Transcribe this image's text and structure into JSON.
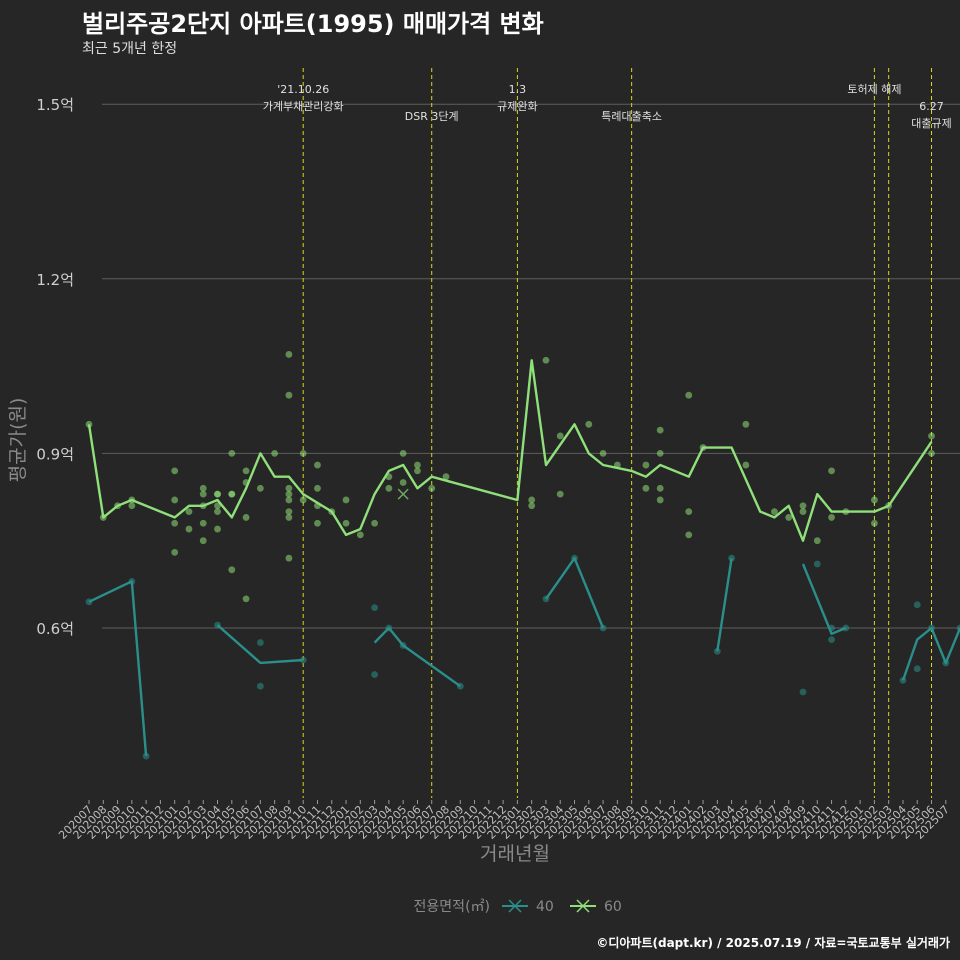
{
  "header": {
    "title": "벌리주공2단지 아파트(1995) 매매가격 변화",
    "subtitle": "최근 5개년 한정"
  },
  "caption": "©디아파트(dapt.kr) / 2025.07.19 / 자료=국토교통부 실거래가",
  "chart_data": {
    "type": "line",
    "xlabel": "거래년월",
    "ylabel": "평균가(원)",
    "yticks": [
      0.6,
      0.9,
      1.2,
      1.5
    ],
    "ytick_labels": [
      "0.6억",
      "0.9억",
      "1.2억",
      "1.5억"
    ],
    "ylim": [
      0.32,
      1.58
    ],
    "grid": true,
    "x_categories": [
      "202007",
      "202008",
      "202009",
      "202010",
      "202011",
      "202012",
      "202101",
      "202102",
      "202103",
      "202104",
      "202105",
      "202106",
      "202107",
      "202108",
      "202109",
      "202110",
      "202111",
      "202112",
      "202201",
      "202202",
      "202203",
      "202204",
      "202205",
      "202206",
      "202207",
      "202208",
      "202209",
      "202210",
      "202211",
      "202212",
      "202301",
      "202302",
      "202303",
      "202304",
      "202305",
      "202306",
      "202307",
      "202308",
      "202309",
      "202310",
      "202311",
      "202312",
      "202401",
      "202402",
      "202403",
      "202404",
      "202405",
      "202406",
      "202407",
      "202408",
      "202409",
      "202410",
      "202411",
      "202412",
      "202501",
      "202502",
      "202503",
      "202504",
      "202505",
      "202506",
      "202507"
    ],
    "legend": {
      "title": "전용면적(㎡)",
      "position": "bottom",
      "entries": [
        {
          "label": "40",
          "color": "#2a8f8a"
        },
        {
          "label": "60",
          "color": "#8fe07a"
        }
      ]
    },
    "events": [
      {
        "x": "202110",
        "label_lines": [
          "'21.10.26",
          "가계부채관리강화"
        ],
        "row": 0
      },
      {
        "x": "202207",
        "label_lines": [
          "DSR 3단계"
        ],
        "row": 1
      },
      {
        "x": "202301",
        "label_lines": [
          "1.3",
          "규제완화"
        ],
        "row": 0
      },
      {
        "x": "202309",
        "label_lines": [
          "특례대출축소"
        ],
        "row": 1
      },
      {
        "x": "202502",
        "label_lines": [
          "토허제 해제"
        ],
        "row": 0
      },
      {
        "x": "202503",
        "label_lines": [],
        "row": 0
      },
      {
        "x": "202506",
        "label_lines": [
          "6.27",
          "대출규제"
        ],
        "row": 2
      }
    ],
    "series": [
      {
        "name": "60",
        "color": "#8fe07a",
        "line": [
          [
            "202007",
            0.95
          ],
          [
            "202008",
            0.79
          ],
          [
            "202009",
            0.81
          ],
          [
            "202010",
            0.82
          ],
          [
            "202012",
            0.8
          ],
          [
            "202101",
            0.79
          ],
          [
            "202102",
            0.81
          ],
          [
            "202103",
            0.81
          ],
          [
            "202104",
            0.82
          ],
          [
            "202105",
            0.79
          ],
          [
            "202106",
            0.84
          ],
          [
            "202107",
            0.9
          ],
          [
            "202108",
            0.86
          ],
          [
            "202109",
            0.86
          ],
          [
            "202110",
            0.83
          ],
          [
            "202112",
            0.8
          ],
          [
            "202201",
            0.76
          ],
          [
            "202202",
            0.77
          ],
          [
            "202203",
            0.83
          ],
          [
            "202204",
            0.87
          ],
          [
            "202205",
            0.88
          ],
          [
            "202206",
            0.84
          ],
          [
            "202207",
            0.86
          ],
          [
            "202301",
            0.82
          ],
          [
            "202302",
            1.06
          ],
          [
            "202303",
            0.88
          ],
          [
            "202305",
            0.95
          ],
          [
            "202306",
            0.9
          ],
          [
            "202307",
            0.88
          ],
          [
            "202309",
            0.87
          ],
          [
            "202310",
            0.86
          ],
          [
            "202311",
            0.88
          ],
          [
            "202401",
            0.86
          ],
          [
            "202402",
            0.91
          ],
          [
            "202404",
            0.91
          ],
          [
            "202406",
            0.8
          ],
          [
            "202407",
            0.79
          ],
          [
            "202408",
            0.81
          ],
          [
            "202409",
            0.75
          ],
          [
            "202410",
            0.83
          ],
          [
            "202411",
            0.8
          ],
          [
            "202501",
            0.8
          ],
          [
            "202502",
            0.8
          ],
          [
            "202503",
            0.81
          ],
          [
            "202506",
            0.92
          ]
        ],
        "points": [
          [
            "202007",
            0.95
          ],
          [
            "202008",
            0.79
          ],
          [
            "202009",
            0.81
          ],
          [
            "202010",
            0.81
          ],
          [
            "202010",
            0.82
          ],
          [
            "202101",
            0.87
          ],
          [
            "202101",
            0.82
          ],
          [
            "202101",
            0.78
          ],
          [
            "202101",
            0.73
          ],
          [
            "202102",
            0.8
          ],
          [
            "202102",
            0.77
          ],
          [
            "202103",
            0.84
          ],
          [
            "202103",
            0.83
          ],
          [
            "202103",
            0.81
          ],
          [
            "202103",
            0.78
          ],
          [
            "202103",
            0.75
          ],
          [
            "202104",
            0.83
          ],
          [
            "202104",
            0.83
          ],
          [
            "202104",
            0.81
          ],
          [
            "202104",
            0.8
          ],
          [
            "202104",
            0.77
          ],
          [
            "202105",
            0.9
          ],
          [
            "202105",
            0.83
          ],
          [
            "202105",
            0.83
          ],
          [
            "202105",
            0.7
          ],
          [
            "202106",
            0.87
          ],
          [
            "202106",
            0.85
          ],
          [
            "202106",
            0.79
          ],
          [
            "202106",
            0.65
          ],
          [
            "202107",
            0.84
          ],
          [
            "202108",
            0.9
          ],
          [
            "202109",
            1.07
          ],
          [
            "202109",
            1.0
          ],
          [
            "202109",
            0.84
          ],
          [
            "202109",
            0.83
          ],
          [
            "202109",
            0.82
          ],
          [
            "202109",
            0.8
          ],
          [
            "202109",
            0.79
          ],
          [
            "202109",
            0.72
          ],
          [
            "202110",
            0.9
          ],
          [
            "202110",
            0.82
          ],
          [
            "202111",
            0.88
          ],
          [
            "202111",
            0.84
          ],
          [
            "202111",
            0.81
          ],
          [
            "202111",
            0.78
          ],
          [
            "202112",
            0.8
          ],
          [
            "202201",
            0.82
          ],
          [
            "202201",
            0.78
          ],
          [
            "202202",
            0.76
          ],
          [
            "202203",
            0.78
          ],
          [
            "202204",
            0.86
          ],
          [
            "202204",
            0.84
          ],
          [
            "202205",
            0.9
          ],
          [
            "202205",
            0.85
          ],
          [
            "202206",
            0.88
          ],
          [
            "202206",
            0.87
          ],
          [
            "202207",
            0.84
          ],
          [
            "202208",
            0.86
          ],
          [
            "202302",
            0.82
          ],
          [
            "202302",
            0.81
          ],
          [
            "202303",
            1.06
          ],
          [
            "202304",
            0.93
          ],
          [
            "202304",
            0.83
          ],
          [
            "202306",
            0.95
          ],
          [
            "202307",
            0.9
          ],
          [
            "202308",
            0.88
          ],
          [
            "202310",
            0.88
          ],
          [
            "202310",
            0.84
          ],
          [
            "202311",
            0.94
          ],
          [
            "202311",
            0.9
          ],
          [
            "202311",
            0.84
          ],
          [
            "202311",
            0.82
          ],
          [
            "202401",
            1.0
          ],
          [
            "202401",
            0.8
          ],
          [
            "202401",
            0.76
          ],
          [
            "202402",
            0.91
          ],
          [
            "202405",
            0.95
          ],
          [
            "202405",
            0.88
          ],
          [
            "202407",
            0.8
          ],
          [
            "202408",
            0.79
          ],
          [
            "202409",
            0.81
          ],
          [
            "202409",
            0.8
          ],
          [
            "202410",
            0.75
          ],
          [
            "202411",
            0.87
          ],
          [
            "202411",
            0.79
          ],
          [
            "202412",
            0.8
          ],
          [
            "202502",
            0.82
          ],
          [
            "202502",
            0.78
          ],
          [
            "202503",
            0.81
          ],
          [
            "202506",
            0.93
          ],
          [
            "202506",
            0.9
          ]
        ],
        "cross_markers": [
          [
            "202205",
            0.83
          ]
        ]
      },
      {
        "name": "40",
        "color": "#2a8f8a",
        "line_segments": [
          [
            [
              "202007",
              0.645
            ],
            [
              "202010",
              0.68
            ],
            [
              "202011",
              0.38
            ]
          ],
          [
            [
              "202104",
              0.605
            ],
            [
              "202107",
              0.54
            ],
            [
              "202110",
              0.545
            ]
          ],
          [
            [
              "202203",
              0.575
            ],
            [
              "202204",
              0.6
            ],
            [
              "202205",
              0.57
            ],
            [
              "202209",
              0.5
            ]
          ],
          [
            [
              "202303",
              0.65
            ],
            [
              "202305",
              0.72
            ],
            [
              "202307",
              0.6
            ]
          ],
          [
            [
              "202403",
              0.56
            ],
            [
              "202404",
              0.72
            ]
          ],
          [
            [
              "202409",
              0.71
            ],
            [
              "202411",
              0.59
            ],
            [
              "202412",
              0.6
            ]
          ],
          [
            [
              "202504",
              0.51
            ],
            [
              "202505",
              0.58
            ],
            [
              "202506",
              0.6
            ],
            [
              "202507",
              0.54
            ],
            [
              "202508",
              0.6
            ]
          ]
        ],
        "points": [
          [
            "202007",
            0.645
          ],
          [
            "202010",
            0.68
          ],
          [
            "202011",
            0.38
          ],
          [
            "202104",
            0.605
          ],
          [
            "202107",
            0.575
          ],
          [
            "202107",
            0.5
          ],
          [
            "202110",
            0.545
          ],
          [
            "202203",
            0.635
          ],
          [
            "202203",
            0.52
          ],
          [
            "202204",
            0.6
          ],
          [
            "202205",
            0.57
          ],
          [
            "202209",
            0.5
          ],
          [
            "202303",
            0.65
          ],
          [
            "202305",
            0.72
          ],
          [
            "202307",
            0.6
          ],
          [
            "202403",
            0.56
          ],
          [
            "202404",
            0.72
          ],
          [
            "202409",
            0.49
          ],
          [
            "202410",
            0.71
          ],
          [
            "202411",
            0.6
          ],
          [
            "202411",
            0.58
          ],
          [
            "202412",
            0.6
          ],
          [
            "202504",
            0.51
          ],
          [
            "202505",
            0.64
          ],
          [
            "202505",
            0.53
          ],
          [
            "202506",
            0.6
          ],
          [
            "202507",
            0.54
          ],
          [
            "202508",
            0.6
          ]
        ]
      }
    ]
  }
}
